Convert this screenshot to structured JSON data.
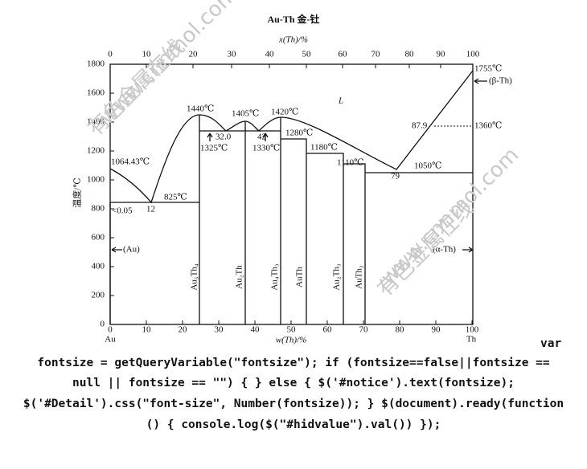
{
  "title": "Au-Th  金-钍",
  "top_axis": {
    "label": "x(Th)/%",
    "ticks": [
      0,
      10,
      20,
      30,
      40,
      50,
      60,
      70,
      80,
      90,
      100
    ]
  },
  "bottom_axis": {
    "label": "w(Th)/%",
    "ticks": [
      0,
      10,
      20,
      30,
      40,
      50,
      60,
      70,
      80,
      90,
      100
    ],
    "end_labels": [
      "Au",
      "Th"
    ]
  },
  "y_axis": {
    "label": "温度/℃",
    "ticks": [
      0,
      200,
      400,
      600,
      800,
      1000,
      1200,
      1400,
      1600,
      1800
    ]
  },
  "annotations": [
    "1755℃",
    "(β-Th)",
    "1360℃",
    "87.9",
    "L",
    "1440℃",
    "1405℃",
    "1420℃",
    "32.0",
    "42",
    "1325℃",
    "1330℃",
    "1280℃",
    "1180℃",
    "1110℃",
    "1050℃",
    "79",
    "1064.43℃",
    "825℃",
    "12",
    "<0.05",
    "(Au)",
    "(α-Th)"
  ],
  "compounds": [
    "Au₅Th₄",
    "Au₂Th",
    "Au₄Th₃",
    "AuTh",
    "Au₂Th₃",
    "AuTh₂"
  ],
  "watermarks": [
    "有色金属在线",
    "www.cnnmol.com",
    "有色金属在线",
    "www.cnnmol.com"
  ],
  "code_text": [
    "var",
    "fontsize = getQueryVariable(\"fontsize\"); if (fontsize==false||fontsize ==",
    "null || fontsize == \"\") { } else { $('#notice').text(fontsize);",
    "$('#Detail').css(\"font-size\", Number(fontsize)); } $(document).ready(function",
    "() { console.log($(\"#hidvalue\").val()) });"
  ]
}
